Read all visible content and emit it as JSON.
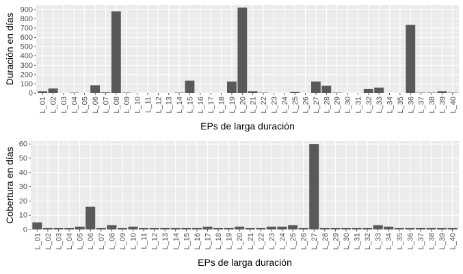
{
  "chart_data": [
    {
      "type": "bar",
      "xlabel": "EPs de larga duración",
      "ylabel": "Duración en días",
      "ylim": [
        0,
        950
      ],
      "yticks": [
        0,
        100,
        200,
        300,
        400,
        500,
        600,
        700,
        800,
        900
      ],
      "grid": true,
      "bar_color": "#595959",
      "panel_color": "#ebebeb",
      "categories": [
        "L_01",
        "L_02",
        "L_03",
        "L_04",
        "L_05",
        "L_06",
        "L_07",
        "L_08",
        "L_09",
        "L_10",
        "L_11",
        "L_12",
        "L_13",
        "L_14",
        "L_15",
        "L_16",
        "L_17",
        "L_18",
        "L_19",
        "L_20",
        "L_21",
        "L_22",
        "L_23",
        "L_24",
        "L_25",
        "L_26",
        "L_27",
        "L_28",
        "L_29",
        "L_30",
        "L_31",
        "L_32",
        "L_33",
        "L_34",
        "L_35",
        "L_36",
        "L_37",
        "L_38",
        "L_39",
        "L_40"
      ],
      "values": [
        20,
        50,
        0,
        5,
        0,
        85,
        10,
        880,
        5,
        0,
        0,
        0,
        0,
        5,
        135,
        0,
        0,
        0,
        125,
        920,
        20,
        5,
        0,
        0,
        15,
        0,
        125,
        80,
        5,
        0,
        0,
        45,
        60,
        0,
        0,
        735,
        5,
        5,
        20,
        5
      ]
    },
    {
      "type": "bar",
      "xlabel": "EPs de larga duración",
      "ylabel": "Cobertura en días",
      "ylim": [
        0,
        62
      ],
      "yticks": [
        0,
        10,
        20,
        30,
        40,
        50,
        60
      ],
      "grid": true,
      "bar_color": "#595959",
      "panel_color": "#ebebeb",
      "categories": [
        "L_01",
        "L_02",
        "L_03",
        "L_04",
        "L_05",
        "L_06",
        "L_07",
        "L_08",
        "L_09",
        "L_10",
        "L_11",
        "L_12",
        "L_13",
        "L_14",
        "L_15",
        "L_16",
        "L_17",
        "L_18",
        "L_19",
        "L_20",
        "L_21",
        "L_22",
        "L_23",
        "L_24",
        "L_25",
        "L_26",
        "L_27",
        "L_28",
        "L_29",
        "L_30",
        "L_31",
        "L_32",
        "L_33",
        "L_34",
        "L_35",
        "L_36",
        "L_37",
        "L_38",
        "L_39",
        "L_40"
      ],
      "values": [
        5,
        1,
        1,
        1,
        2,
        16,
        1,
        3,
        1,
        2,
        1,
        1,
        1,
        1,
        1,
        1,
        2,
        1,
        1,
        2,
        1,
        1,
        2,
        2,
        3,
        1,
        60,
        1,
        1,
        1,
        1,
        1,
        3,
        2,
        1,
        1,
        1,
        1,
        1,
        1
      ]
    }
  ]
}
